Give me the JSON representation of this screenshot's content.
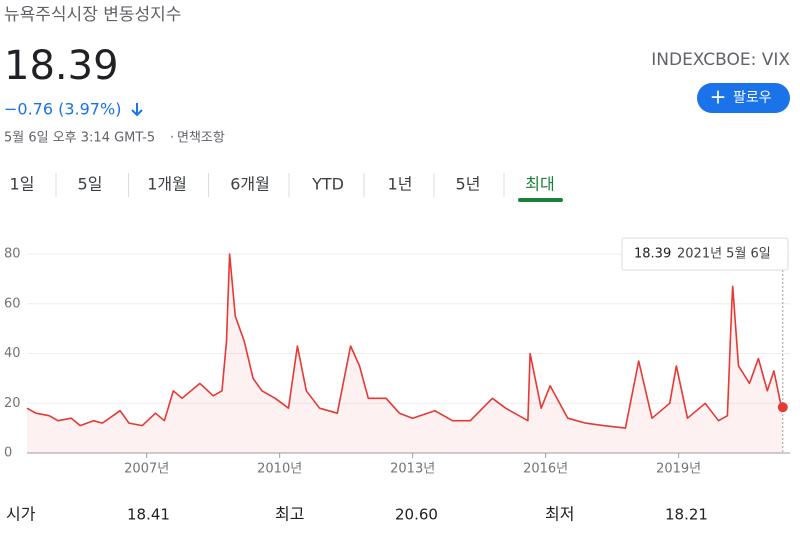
{
  "header": {
    "title": "뉴욕주식시장 변동성지수",
    "price": "18.39",
    "change": "−0.76 (3.97%)",
    "timestamp": "5월 6일 오후 3:14 GMT-5",
    "disclaimer": "면책조항",
    "ticker": "INDEXCBOE: VIX",
    "follow": "팔로우"
  },
  "tabs": [
    "1일",
    "5일",
    "1개월",
    "6개월",
    "YTD",
    "1년",
    "5년",
    "최대"
  ],
  "selected_tab": 7,
  "chart_data": {
    "type": "line",
    "x": [
      2004.3,
      2004.5,
      2004.8,
      2005.0,
      2005.3,
      2005.5,
      2005.8,
      2006.0,
      2006.4,
      2006.6,
      2006.9,
      2007.2,
      2007.4,
      2007.6,
      2007.8,
      2008.0,
      2008.2,
      2008.5,
      2008.7,
      2008.8,
      2008.87,
      2009.0,
      2009.2,
      2009.4,
      2009.6,
      2009.9,
      2010.2,
      2010.4,
      2010.6,
      2010.9,
      2011.3,
      2011.6,
      2011.8,
      2012.0,
      2012.4,
      2012.7,
      2013.0,
      2013.5,
      2013.9,
      2014.3,
      2014.8,
      2015.1,
      2015.6,
      2015.65,
      2015.9,
      2016.1,
      2016.5,
      2016.9,
      2017.3,
      2017.8,
      2018.1,
      2018.4,
      2018.8,
      2018.95,
      2019.2,
      2019.6,
      2019.9,
      2020.1,
      2020.2,
      2020.22,
      2020.35,
      2020.6,
      2020.8,
      2021.0,
      2021.15,
      2021.3,
      2021.35
    ],
    "series": [
      {
        "name": "VIX",
        "color": "#e53935",
        "values": [
          18,
          16,
          15,
          13,
          14,
          11,
          13,
          12,
          17,
          12,
          11,
          16,
          13,
          25,
          22,
          25,
          28,
          23,
          25,
          45,
          80,
          55,
          45,
          30,
          25,
          22,
          18,
          43,
          25,
          18,
          16,
          43,
          35,
          22,
          22,
          16,
          14,
          17,
          13,
          13,
          22,
          18,
          13,
          40,
          18,
          27,
          14,
          12,
          11,
          10,
          37,
          14,
          20,
          35,
          14,
          20,
          13,
          15,
          60,
          67,
          35,
          28,
          38,
          25,
          33,
          20,
          18.39
        ]
      }
    ],
    "xlim": [
      2004.3,
      2021.4
    ],
    "xticks": [
      {
        "value": 2007,
        "label": "2007년"
      },
      {
        "value": 2010,
        "label": "2010년"
      },
      {
        "value": 2013,
        "label": "2013년"
      },
      {
        "value": 2016,
        "label": "2016년"
      },
      {
        "value": 2019,
        "label": "2019년"
      }
    ],
    "ylim": [
      0,
      80
    ],
    "yticks": [
      0,
      20,
      40,
      60,
      80
    ],
    "grid": true,
    "tooltip": {
      "value": "18.39",
      "date": "2021년 5월 6일"
    }
  },
  "stats": [
    {
      "label": "시가",
      "value": "18.41"
    },
    {
      "label": "최고",
      "value": "20.60"
    },
    {
      "label": "최저",
      "value": "18.21"
    }
  ]
}
